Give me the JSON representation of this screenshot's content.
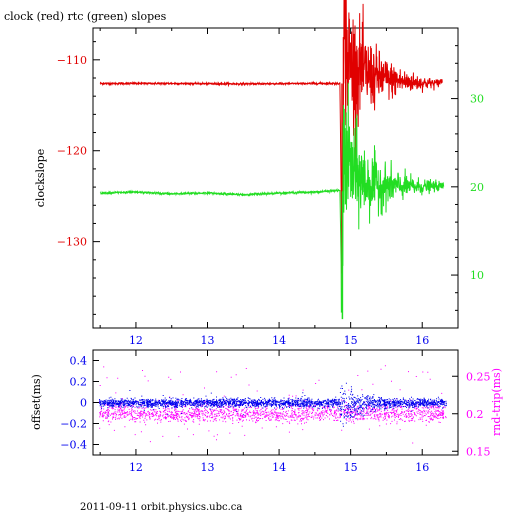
{
  "title": "clock (red) rtc (green) slopes",
  "footer": "2011-09-11 orbit.physics.ubc.ca",
  "colors": {
    "red": "#e00000",
    "green": "#22dd22",
    "blue": "#0000ee",
    "magenta": "#ff00ff",
    "axis": "#000000"
  },
  "chart_data": [
    {
      "type": "line",
      "ylabel": "clockslope",
      "y2label": "",
      "xlim": [
        11.4,
        16.5
      ],
      "ylim": [
        -139.5,
        -106.5
      ],
      "y2lim": [
        4,
        38
      ],
      "xticks": [
        12,
        13,
        14,
        15,
        16
      ],
      "yticks": [
        -110,
        -120,
        -130
      ],
      "y2ticks": [
        10,
        20,
        30
      ],
      "series": [
        {
          "name": "clock",
          "color": "#e00000",
          "axis": "left",
          "points": [
            [
              11.5,
              -112.6
            ],
            [
              12.5,
              -112.6
            ],
            [
              13.5,
              -112.65
            ],
            [
              14.5,
              -112.6
            ],
            [
              14.85,
              -112.6
            ],
            [
              14.88,
              -133
            ],
            [
              14.9,
              -108
            ],
            [
              14.95,
              -109.5
            ],
            [
              15.0,
              -110.5
            ],
            [
              15.1,
              -111
            ],
            [
              15.3,
              -111.8
            ],
            [
              15.6,
              -112.3
            ],
            [
              16.0,
              -112.55
            ],
            [
              16.2,
              -112.6
            ],
            [
              16.28,
              -112.3
            ]
          ]
        },
        {
          "name": "rtc",
          "color": "#22dd22",
          "axis": "right",
          "points": [
            [
              11.5,
              19.3
            ],
            [
              12.0,
              19.4
            ],
            [
              12.5,
              19.2
            ],
            [
              13.0,
              19.3
            ],
            [
              13.5,
              19.1
            ],
            [
              14.0,
              19.3
            ],
            [
              14.5,
              19.4
            ],
            [
              14.85,
              19.6
            ],
            [
              14.88,
              5.0
            ],
            [
              14.9,
              24
            ],
            [
              15.0,
              22
            ],
            [
              15.2,
              20.5
            ],
            [
              15.5,
              20.1
            ],
            [
              16.0,
              20.0
            ],
            [
              16.3,
              20.1
            ]
          ]
        }
      ]
    },
    {
      "type": "scatter",
      "ylabel": "offset(ms)",
      "y2label": "rnd-trip(ms)",
      "xlim": [
        11.4,
        16.5
      ],
      "ylim": [
        -0.5,
        0.5
      ],
      "y2lim": [
        0.145,
        0.285
      ],
      "xticks": [
        12,
        13,
        14,
        15,
        16
      ],
      "yticks": [
        0.4,
        0.2,
        0,
        -0.2,
        -0.4
      ],
      "y2ticks": [
        0.25,
        0.2,
        0.15
      ],
      "series": [
        {
          "name": "offset",
          "color": "#0000ee",
          "axis": "left",
          "mean": 0.0,
          "spread": 0.02
        },
        {
          "name": "rnd-trip",
          "color": "#ff00ff",
          "axis": "right",
          "mean": 0.197,
          "spread": 0.012
        }
      ]
    }
  ]
}
